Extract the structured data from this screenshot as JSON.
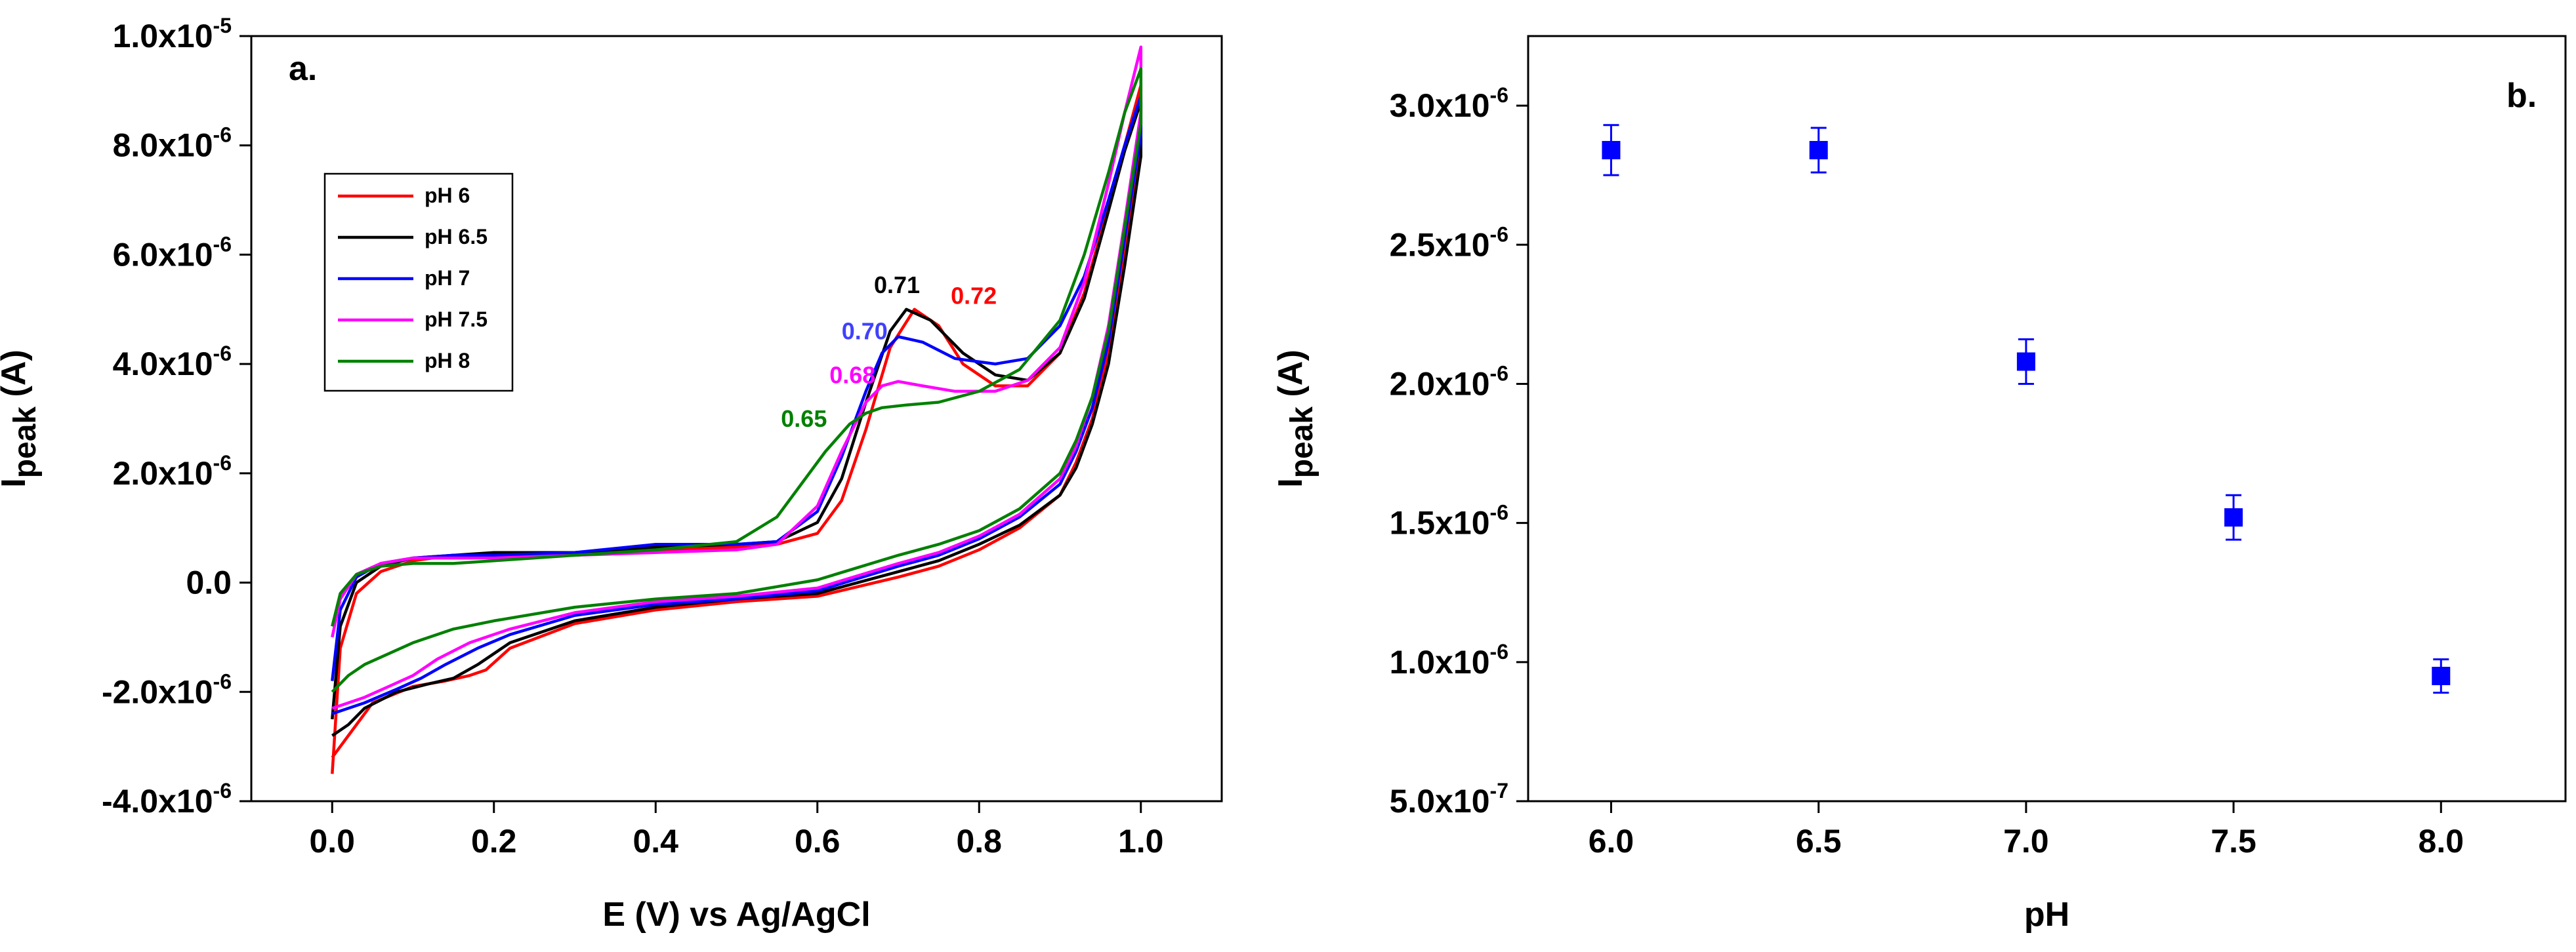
{
  "chart_data": [
    {
      "type": "line",
      "panel_label": "a.",
      "title": "",
      "xlabel": "E (V) vs Ag/AgCl",
      "ylabel_main": "I",
      "ylabel_sub": "peak",
      "ylabel_unit": " (A)",
      "xlim": [
        -0.1,
        1.1
      ],
      "ylim": [
        -4e-06,
        1e-05
      ],
      "x_ticks": [
        {
          "value": 0.0,
          "label": "0.0"
        },
        {
          "value": 0.2,
          "label": "0.2"
        },
        {
          "value": 0.4,
          "label": "0.4"
        },
        {
          "value": 0.6,
          "label": "0.6"
        },
        {
          "value": 0.8,
          "label": "0.8"
        },
        {
          "value": 1.0,
          "label": "1.0"
        }
      ],
      "y_ticks": [
        {
          "value": -4e-06,
          "mant": "-4.0x10",
          "exp": "-6"
        },
        {
          "value": -2e-06,
          "mant": "-2.0x10",
          "exp": "-6"
        },
        {
          "value": 0.0,
          "mant": "0.0",
          "exp": ""
        },
        {
          "value": 2e-06,
          "mant": "2.0x10",
          "exp": "-6"
        },
        {
          "value": 4e-06,
          "mant": "4.0x10",
          "exp": "-6"
        },
        {
          "value": 6e-06,
          "mant": "6.0x10",
          "exp": "-6"
        },
        {
          "value": 8e-06,
          "mant": "8.0x10",
          "exp": "-6"
        },
        {
          "value": 1e-05,
          "mant": "1.0x10",
          "exp": "-5"
        }
      ],
      "grid": false,
      "legend_position": "upper-left",
      "series": [
        {
          "name": "pH 6",
          "color": "#ff0000",
          "forward_x": [
            0.0,
            0.01,
            0.03,
            0.06,
            0.1,
            0.15,
            0.2,
            0.3,
            0.4,
            0.5,
            0.55,
            0.6,
            0.63,
            0.66,
            0.69,
            0.72,
            0.75,
            0.78,
            0.82,
            0.86,
            0.9,
            0.93,
            0.96,
            0.98,
            1.0
          ],
          "forward_y": [
            -3.5e-06,
            -1.2e-06,
            -2e-07,
            2e-07,
            4e-07,
            5e-07,
            5e-07,
            5.5e-07,
            6e-07,
            6.5e-07,
            7e-07,
            9e-07,
            1.5e-06,
            2.8e-06,
            4.3e-06,
            5e-06,
            4.7e-06,
            4e-06,
            3.6e-06,
            3.6e-06,
            4.2e-06,
            5.3e-06,
            6.9e-06,
            8e-06,
            9.1e-06
          ],
          "reverse_x": [
            1.0,
            0.98,
            0.96,
            0.94,
            0.92,
            0.9,
            0.85,
            0.8,
            0.75,
            0.7,
            0.6,
            0.5,
            0.4,
            0.3,
            0.22,
            0.19,
            0.17,
            0.14,
            0.1,
            0.05,
            0.02,
            0.0
          ],
          "reverse_y": [
            8e-06,
            6e-06,
            4.2e-06,
            3e-06,
            2.2e-06,
            1.6e-06,
            1e-06,
            6e-07,
            3e-07,
            1e-07,
            -2.5e-07,
            -3.5e-07,
            -5e-07,
            -7.5e-07,
            -1.2e-06,
            -1.6e-06,
            -1.7e-06,
            -1.8e-06,
            -1.9e-06,
            -2.2e-06,
            -2.8e-06,
            -3.2e-06
          ]
        },
        {
          "name": "pH 6.5",
          "color": "#000000",
          "forward_x": [
            0.0,
            0.01,
            0.03,
            0.06,
            0.1,
            0.15,
            0.2,
            0.3,
            0.4,
            0.5,
            0.55,
            0.6,
            0.63,
            0.66,
            0.69,
            0.71,
            0.74,
            0.78,
            0.82,
            0.86,
            0.9,
            0.93,
            0.96,
            0.98,
            1.0
          ],
          "forward_y": [
            -2.5e-06,
            -8e-07,
            0.0,
            3e-07,
            4.5e-07,
            5e-07,
            5.5e-07,
            5.5e-07,
            6.5e-07,
            7e-07,
            7.5e-07,
            1.1e-06,
            1.9e-06,
            3.3e-06,
            4.6e-06,
            5e-06,
            4.8e-06,
            4.2e-06,
            3.8e-06,
            3.7e-06,
            4.2e-06,
            5.2e-06,
            6.8e-06,
            7.9e-06,
            8.8e-06
          ],
          "reverse_x": [
            1.0,
            0.98,
            0.96,
            0.94,
            0.92,
            0.9,
            0.85,
            0.8,
            0.75,
            0.7,
            0.6,
            0.5,
            0.4,
            0.3,
            0.22,
            0.18,
            0.15,
            0.12,
            0.08,
            0.04,
            0.02,
            0.0
          ],
          "reverse_y": [
            7.8e-06,
            5.8e-06,
            4e-06,
            2.9e-06,
            2.1e-06,
            1.6e-06,
            1.05e-06,
            7e-07,
            4e-07,
            2e-07,
            -2e-07,
            -3e-07,
            -4.5e-07,
            -7e-07,
            -1.1e-06,
            -1.5e-06,
            -1.75e-06,
            -1.85e-06,
            -2e-06,
            -2.3e-06,
            -2.6e-06,
            -2.8e-06
          ]
        },
        {
          "name": "pH 7",
          "color": "#0000ff",
          "forward_x": [
            0.0,
            0.01,
            0.03,
            0.06,
            0.1,
            0.15,
            0.2,
            0.3,
            0.4,
            0.5,
            0.55,
            0.6,
            0.63,
            0.66,
            0.68,
            0.7,
            0.73,
            0.77,
            0.82,
            0.86,
            0.9,
            0.93,
            0.96,
            0.98,
            1.0
          ],
          "forward_y": [
            -1.8e-06,
            -5e-07,
            1e-07,
            3.5e-07,
            4.5e-07,
            5e-07,
            5e-07,
            5.5e-07,
            7e-07,
            7e-07,
            7.5e-07,
            1.3e-06,
            2.3e-06,
            3.5e-06,
            4.2e-06,
            4.5e-06,
            4.4e-06,
            4.1e-06,
            4e-06,
            4.1e-06,
            4.7e-06,
            5.6e-06,
            7e-06,
            8e-06,
            8.9e-06
          ],
          "reverse_x": [
            1.0,
            0.98,
            0.96,
            0.94,
            0.92,
            0.9,
            0.85,
            0.8,
            0.75,
            0.7,
            0.6,
            0.5,
            0.4,
            0.3,
            0.22,
            0.18,
            0.14,
            0.11,
            0.08,
            0.04,
            0.02,
            0.0
          ],
          "reverse_y": [
            8.2e-06,
            6.3e-06,
            4.4e-06,
            3.2e-06,
            2.4e-06,
            1.8e-06,
            1.2e-06,
            8e-07,
            5e-07,
            3e-07,
            -1.5e-07,
            -3e-07,
            -4e-07,
            -6e-07,
            -9.5e-07,
            -1.2e-06,
            -1.5e-06,
            -1.75e-06,
            -1.95e-06,
            -2.2e-06,
            -2.3e-06,
            -2.4e-06
          ]
        },
        {
          "name": "pH 7.5",
          "color": "#ff00ff",
          "forward_x": [
            0.0,
            0.01,
            0.03,
            0.06,
            0.1,
            0.15,
            0.2,
            0.3,
            0.4,
            0.5,
            0.55,
            0.6,
            0.63,
            0.66,
            0.68,
            0.7,
            0.73,
            0.77,
            0.82,
            0.86,
            0.9,
            0.93,
            0.96,
            0.98,
            1.0
          ],
          "forward_y": [
            -1e-06,
            -3e-07,
            1.5e-07,
            3.5e-07,
            4.5e-07,
            4.5e-07,
            4.5e-07,
            5e-07,
            5.5e-07,
            6e-07,
            7e-07,
            1.4e-06,
            2.4e-06,
            3.3e-06,
            3.6e-06,
            3.68e-06,
            3.6e-06,
            3.5e-06,
            3.5e-06,
            3.7e-06,
            4.3e-06,
            5.5e-06,
            7.3e-06,
            8.6e-06,
            9.8e-06
          ],
          "reverse_x": [
            1.0,
            0.98,
            0.96,
            0.94,
            0.92,
            0.9,
            0.85,
            0.8,
            0.75,
            0.7,
            0.6,
            0.5,
            0.4,
            0.3,
            0.22,
            0.17,
            0.13,
            0.1,
            0.07,
            0.04,
            0.02,
            0.0
          ],
          "reverse_y": [
            8.6e-06,
            6.6e-06,
            4.7e-06,
            3.4e-06,
            2.5e-06,
            1.9e-06,
            1.25e-06,
            8.5e-07,
            5.5e-07,
            3.5e-07,
            -1e-07,
            -2.5e-07,
            -3.5e-07,
            -5.5e-07,
            -8.5e-07,
            -1.1e-06,
            -1.4e-06,
            -1.7e-06,
            -1.9e-06,
            -2.1e-06,
            -2.2e-06,
            -2.3e-06
          ]
        },
        {
          "name": "pH 8",
          "color": "#008000",
          "forward_x": [
            0.0,
            0.01,
            0.03,
            0.06,
            0.1,
            0.15,
            0.2,
            0.3,
            0.4,
            0.5,
            0.55,
            0.58,
            0.61,
            0.64,
            0.66,
            0.68,
            0.71,
            0.75,
            0.8,
            0.85,
            0.9,
            0.93,
            0.96,
            0.98,
            1.0
          ],
          "forward_y": [
            -8e-07,
            -2e-07,
            1.5e-07,
            3e-07,
            3.5e-07,
            3.5e-07,
            4e-07,
            5e-07,
            6e-07,
            7.5e-07,
            1.2e-06,
            1.8e-06,
            2.4e-06,
            2.9e-06,
            3.1e-06,
            3.2e-06,
            3.25e-06,
            3.3e-06,
            3.5e-06,
            3.9e-06,
            4.8e-06,
            6e-06,
            7.5e-06,
            8.6e-06,
            9.4e-06
          ],
          "reverse_x": [
            1.0,
            0.98,
            0.96,
            0.94,
            0.92,
            0.9,
            0.85,
            0.8,
            0.75,
            0.7,
            0.6,
            0.5,
            0.4,
            0.3,
            0.2,
            0.15,
            0.1,
            0.07,
            0.04,
            0.02,
            0.0
          ],
          "reverse_y": [
            8.4e-06,
            6.5e-06,
            4.6e-06,
            3.4e-06,
            2.6e-06,
            2e-06,
            1.35e-06,
            9.5e-07,
            7e-07,
            5e-07,
            5e-08,
            -2e-07,
            -3e-07,
            -4.5e-07,
            -7e-07,
            -8.5e-07,
            -1.1e-06,
            -1.3e-06,
            -1.5e-06,
            -1.7e-06,
            -2e-06
          ]
        }
      ],
      "annotations": [
        {
          "text": "0.72",
          "x": 0.765,
          "y": 5.1e-06,
          "color": "#ff0000"
        },
        {
          "text": "0.71",
          "x": 0.67,
          "y": 5.3e-06,
          "color": "#000000"
        },
        {
          "text": "0.70",
          "x": 0.63,
          "y": 4.45e-06,
          "color": "#4040ff"
        },
        {
          "text": "0.68",
          "x": 0.615,
          "y": 3.65e-06,
          "color": "#ff00ff"
        },
        {
          "text": "0.65",
          "x": 0.555,
          "y": 2.85e-06,
          "color": "#008000"
        }
      ]
    },
    {
      "type": "scatter",
      "panel_label": "b.",
      "title": "",
      "xlabel": "pH",
      "ylabel_main": "I",
      "ylabel_sub": "peak",
      "ylabel_unit": " (A)",
      "xlim": [
        5.8,
        8.3
      ],
      "ylim": [
        5e-07,
        3.25e-06
      ],
      "x_ticks": [
        {
          "value": 6.0,
          "label": "6.0"
        },
        {
          "value": 6.5,
          "label": "6.5"
        },
        {
          "value": 7.0,
          "label": "7.0"
        },
        {
          "value": 7.5,
          "label": "7.5"
        },
        {
          "value": 8.0,
          "label": "8.0"
        }
      ],
      "y_ticks": [
        {
          "value": 5e-07,
          "mant": "5.0x10",
          "exp": "-7"
        },
        {
          "value": 1e-06,
          "mant": "1.0x10",
          "exp": "-6"
        },
        {
          "value": 1.5e-06,
          "mant": "1.5x10",
          "exp": "-6"
        },
        {
          "value": 2e-06,
          "mant": "2.0x10",
          "exp": "-6"
        },
        {
          "value": 2.5e-06,
          "mant": "2.5x10",
          "exp": "-6"
        },
        {
          "value": 3e-06,
          "mant": "3.0x10",
          "exp": "-6"
        }
      ],
      "grid": false,
      "marker_color": "#0000ff",
      "points": [
        {
          "x": 6.0,
          "y": 2.84e-06,
          "err": 9e-08
        },
        {
          "x": 6.5,
          "y": 2.84e-06,
          "err": 8e-08
        },
        {
          "x": 7.0,
          "y": 2.08e-06,
          "err": 8e-08
        },
        {
          "x": 7.5,
          "y": 1.52e-06,
          "err": 8e-08
        },
        {
          "x": 8.0,
          "y": 9.5e-07,
          "err": 6e-08
        }
      ]
    }
  ]
}
